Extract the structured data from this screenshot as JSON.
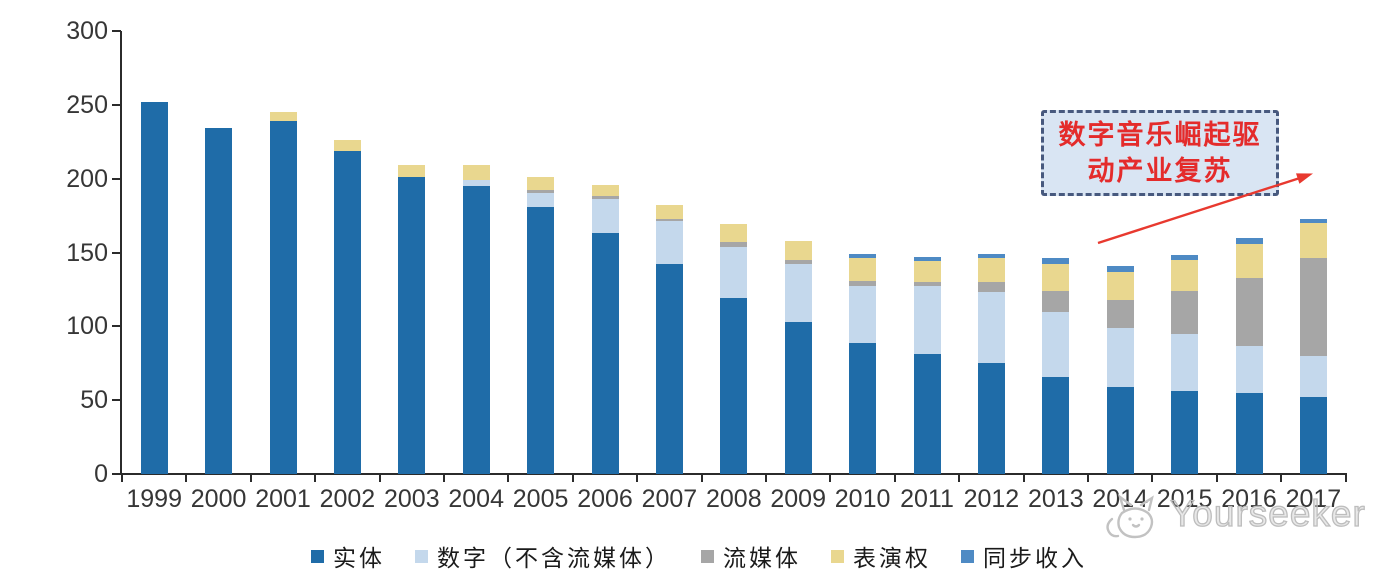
{
  "chart_data": {
    "type": "bar",
    "stacked": true,
    "title": "",
    "xlabel": "",
    "ylabel": "",
    "grid": false,
    "legend_position": "bottom",
    "ylim": [
      0,
      300
    ],
    "yticks": [
      0,
      50,
      100,
      150,
      200,
      250,
      300
    ],
    "categories": [
      "1999",
      "2000",
      "2001",
      "2002",
      "2003",
      "2004",
      "2005",
      "2006",
      "2007",
      "2008",
      "2009",
      "2010",
      "2011",
      "2012",
      "2013",
      "2014",
      "2015",
      "2016",
      "2017"
    ],
    "series": [
      {
        "name": "实体",
        "color": "#1f6ca8",
        "values": [
          252,
          234,
          239,
          219,
          201,
          195,
          181,
          163,
          142,
          119,
          103,
          89,
          81,
          75,
          66,
          59,
          56,
          55,
          52
        ]
      },
      {
        "name": "数字（不含流媒体）",
        "color": "#c4d8ec",
        "values": [
          0,
          0,
          0,
          0,
          0,
          4,
          9,
          23,
          29,
          35,
          39,
          38,
          46,
          48,
          44,
          40,
          39,
          32,
          28
        ]
      },
      {
        "name": "流媒体",
        "color": "#a6a6a6",
        "values": [
          0,
          0,
          0,
          0,
          0,
          0,
          2,
          2,
          2,
          3,
          3,
          4,
          3,
          7,
          14,
          19,
          29,
          46,
          66
        ]
      },
      {
        "name": "表演权",
        "color": "#e9d78f",
        "values": [
          0,
          0,
          6,
          7,
          8,
          10,
          9,
          8,
          9,
          12,
          13,
          15,
          14,
          16,
          18,
          19,
          21,
          23,
          24
        ]
      },
      {
        "name": "同步收入",
        "color": "#4e8ac4",
        "values": [
          0,
          0,
          0,
          0,
          0,
          0,
          0,
          0,
          0,
          0,
          0,
          3,
          3,
          3,
          4,
          4,
          3,
          4,
          3
        ]
      }
    ]
  },
  "annotation": {
    "line1": "数字音乐崛起驱",
    "line2": "动产业复苏",
    "text_color": "#e42b2b",
    "border_color": "#47597e",
    "fill_color": "#d9e5f3",
    "arrow_color": "#e8392f"
  },
  "watermark": {
    "text": "Yourseeker"
  }
}
